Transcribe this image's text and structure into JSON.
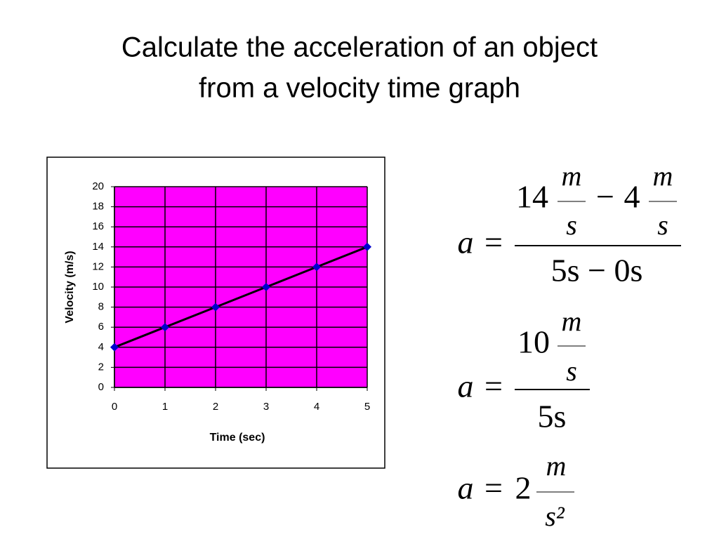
{
  "title_lines": [
    "Calculate the acceleration of an object",
    "from a velocity time graph"
  ],
  "chart_data": {
    "type": "line",
    "xlabel": "Time (sec)",
    "ylabel": "Velocity (m/s)",
    "x": [
      0,
      1,
      2,
      3,
      4,
      5
    ],
    "values": [
      4,
      6,
      8,
      10,
      12,
      14
    ],
    "xlim": [
      0,
      5
    ],
    "xticks": [
      0,
      1,
      2,
      3,
      4,
      5
    ],
    "ylim": [
      0,
      20
    ],
    "yticks": [
      0,
      2,
      4,
      6,
      8,
      10,
      12,
      14,
      16,
      18,
      20
    ],
    "grid": true,
    "background": "#ff00ff",
    "line_color": "#000000",
    "marker_color": "#0000cc"
  },
  "equations": [
    {
      "lhs": "a",
      "op": "=",
      "first": "14",
      "first_unit_top": "m",
      "first_unit_bottom": "s",
      "minus": "−",
      "second": "4",
      "second_unit_top": "m",
      "second_unit_bottom": "s",
      "denominator": "5s − 0s"
    },
    {
      "lhs": "a",
      "op": "=",
      "numerator": "10",
      "unit_top": "m",
      "unit_bottom": "s",
      "denominator": "5s"
    },
    {
      "lhs": "a",
      "op": "=",
      "value": "2",
      "unit_top": "m",
      "unit_bottom": "s²"
    }
  ]
}
